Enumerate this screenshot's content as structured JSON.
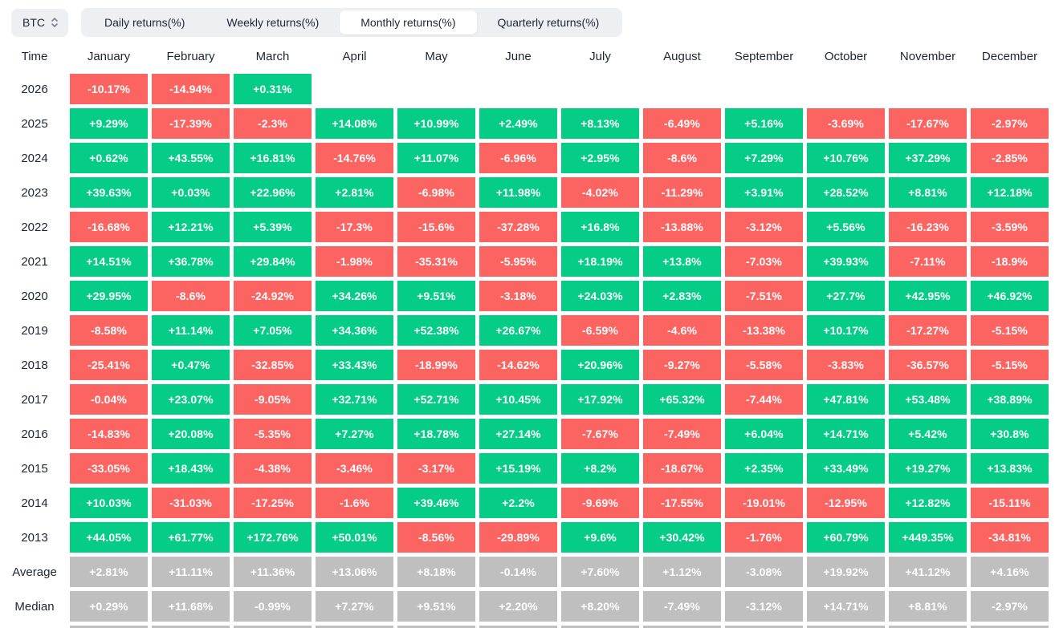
{
  "controls": {
    "symbol_select": {
      "value": "BTC"
    },
    "tabs": [
      {
        "label": "Daily returns(%)",
        "active": false
      },
      {
        "label": "Weekly returns(%)",
        "active": false
      },
      {
        "label": "Monthly returns(%)",
        "active": true
      },
      {
        "label": "Quarterly returns(%)",
        "active": false
      }
    ]
  },
  "colors": {
    "positive": "#05cd85",
    "negative": "#fc6462",
    "summary": "#bfbfbf",
    "toolbar_bg": "#edeff3",
    "text_dark": "#1e2533"
  },
  "chart_data": {
    "type": "heatmap",
    "title": "BTC Monthly returns(%)",
    "columns": [
      "January",
      "February",
      "March",
      "April",
      "May",
      "June",
      "July",
      "August",
      "September",
      "October",
      "November",
      "December"
    ],
    "rows": [
      {
        "label": "2026",
        "type": "year",
        "values": [
          "-10.17%",
          "-14.94%",
          "+0.31%",
          "",
          "",
          "",
          "",
          "",
          "",
          "",
          "",
          ""
        ]
      },
      {
        "label": "2025",
        "type": "year",
        "values": [
          "+9.29%",
          "-17.39%",
          "-2.3%",
          "+14.08%",
          "+10.99%",
          "+2.49%",
          "+8.13%",
          "-6.49%",
          "+5.16%",
          "-3.69%",
          "-17.67%",
          "-2.97%"
        ]
      },
      {
        "label": "2024",
        "type": "year",
        "values": [
          "+0.62%",
          "+43.55%",
          "+16.81%",
          "-14.76%",
          "+11.07%",
          "-6.96%",
          "+2.95%",
          "-8.6%",
          "+7.29%",
          "+10.76%",
          "+37.29%",
          "-2.85%"
        ]
      },
      {
        "label": "2023",
        "type": "year",
        "values": [
          "+39.63%",
          "+0.03%",
          "+22.96%",
          "+2.81%",
          "-6.98%",
          "+11.98%",
          "-4.02%",
          "-11.29%",
          "+3.91%",
          "+28.52%",
          "+8.81%",
          "+12.18%"
        ]
      },
      {
        "label": "2022",
        "type": "year",
        "values": [
          "-16.68%",
          "+12.21%",
          "+5.39%",
          "-17.3%",
          "-15.6%",
          "-37.28%",
          "+16.8%",
          "-13.88%",
          "-3.12%",
          "+5.56%",
          "-16.23%",
          "-3.59%"
        ]
      },
      {
        "label": "2021",
        "type": "year",
        "values": [
          "+14.51%",
          "+36.78%",
          "+29.84%",
          "-1.98%",
          "-35.31%",
          "-5.95%",
          "+18.19%",
          "+13.8%",
          "-7.03%",
          "+39.93%",
          "-7.11%",
          "-18.9%"
        ]
      },
      {
        "label": "2020",
        "type": "year",
        "values": [
          "+29.95%",
          "-8.6%",
          "-24.92%",
          "+34.26%",
          "+9.51%",
          "-3.18%",
          "+24.03%",
          "+2.83%",
          "-7.51%",
          "+27.7%",
          "+42.95%",
          "+46.92%"
        ]
      },
      {
        "label": "2019",
        "type": "year",
        "values": [
          "-8.58%",
          "+11.14%",
          "+7.05%",
          "+34.36%",
          "+52.38%",
          "+26.67%",
          "-6.59%",
          "-4.6%",
          "-13.38%",
          "+10.17%",
          "-17.27%",
          "-5.15%"
        ]
      },
      {
        "label": "2018",
        "type": "year",
        "values": [
          "-25.41%",
          "+0.47%",
          "-32.85%",
          "+33.43%",
          "-18.99%",
          "-14.62%",
          "+20.96%",
          "-9.27%",
          "-5.58%",
          "-3.83%",
          "-36.57%",
          "-5.15%"
        ]
      },
      {
        "label": "2017",
        "type": "year",
        "values": [
          "-0.04%",
          "+23.07%",
          "-9.05%",
          "+32.71%",
          "+52.71%",
          "+10.45%",
          "+17.92%",
          "+65.32%",
          "-7.44%",
          "+47.81%",
          "+53.48%",
          "+38.89%"
        ]
      },
      {
        "label": "2016",
        "type": "year",
        "values": [
          "-14.83%",
          "+20.08%",
          "-5.35%",
          "+7.27%",
          "+18.78%",
          "+27.14%",
          "-7.67%",
          "-7.49%",
          "+6.04%",
          "+14.71%",
          "+5.42%",
          "+30.8%"
        ]
      },
      {
        "label": "2015",
        "type": "year",
        "values": [
          "-33.05%",
          "+18.43%",
          "-4.38%",
          "-3.46%",
          "-3.17%",
          "+15.19%",
          "+8.2%",
          "-18.67%",
          "+2.35%",
          "+33.49%",
          "+19.27%",
          "+13.83%"
        ]
      },
      {
        "label": "2014",
        "type": "year",
        "values": [
          "+10.03%",
          "-31.03%",
          "-17.25%",
          "-1.6%",
          "+39.46%",
          "+2.2%",
          "-9.69%",
          "-17.55%",
          "-19.01%",
          "-12.95%",
          "+12.82%",
          "-15.11%"
        ]
      },
      {
        "label": "2013",
        "type": "year",
        "values": [
          "+44.05%",
          "+61.77%",
          "+172.76%",
          "+50.01%",
          "-8.56%",
          "-29.89%",
          "+9.6%",
          "+30.42%",
          "-1.76%",
          "+60.79%",
          "+449.35%",
          "-34.81%"
        ]
      },
      {
        "label": "Average",
        "type": "summary",
        "values": [
          "+2.81%",
          "+11.11%",
          "+11.36%",
          "+13.06%",
          "+8.18%",
          "-0.14%",
          "+7.60%",
          "+1.12%",
          "-3.08%",
          "+19.92%",
          "+41.12%",
          "+4.16%"
        ]
      },
      {
        "label": "Median",
        "type": "summary",
        "values": [
          "+0.29%",
          "+11.68%",
          "-0.99%",
          "+7.27%",
          "+9.51%",
          "+2.20%",
          "+8.20%",
          "-7.49%",
          "-3.12%",
          "+14.71%",
          "+8.81%",
          "-2.97%"
        ]
      }
    ]
  },
  "table": {
    "time_header": "Time"
  }
}
